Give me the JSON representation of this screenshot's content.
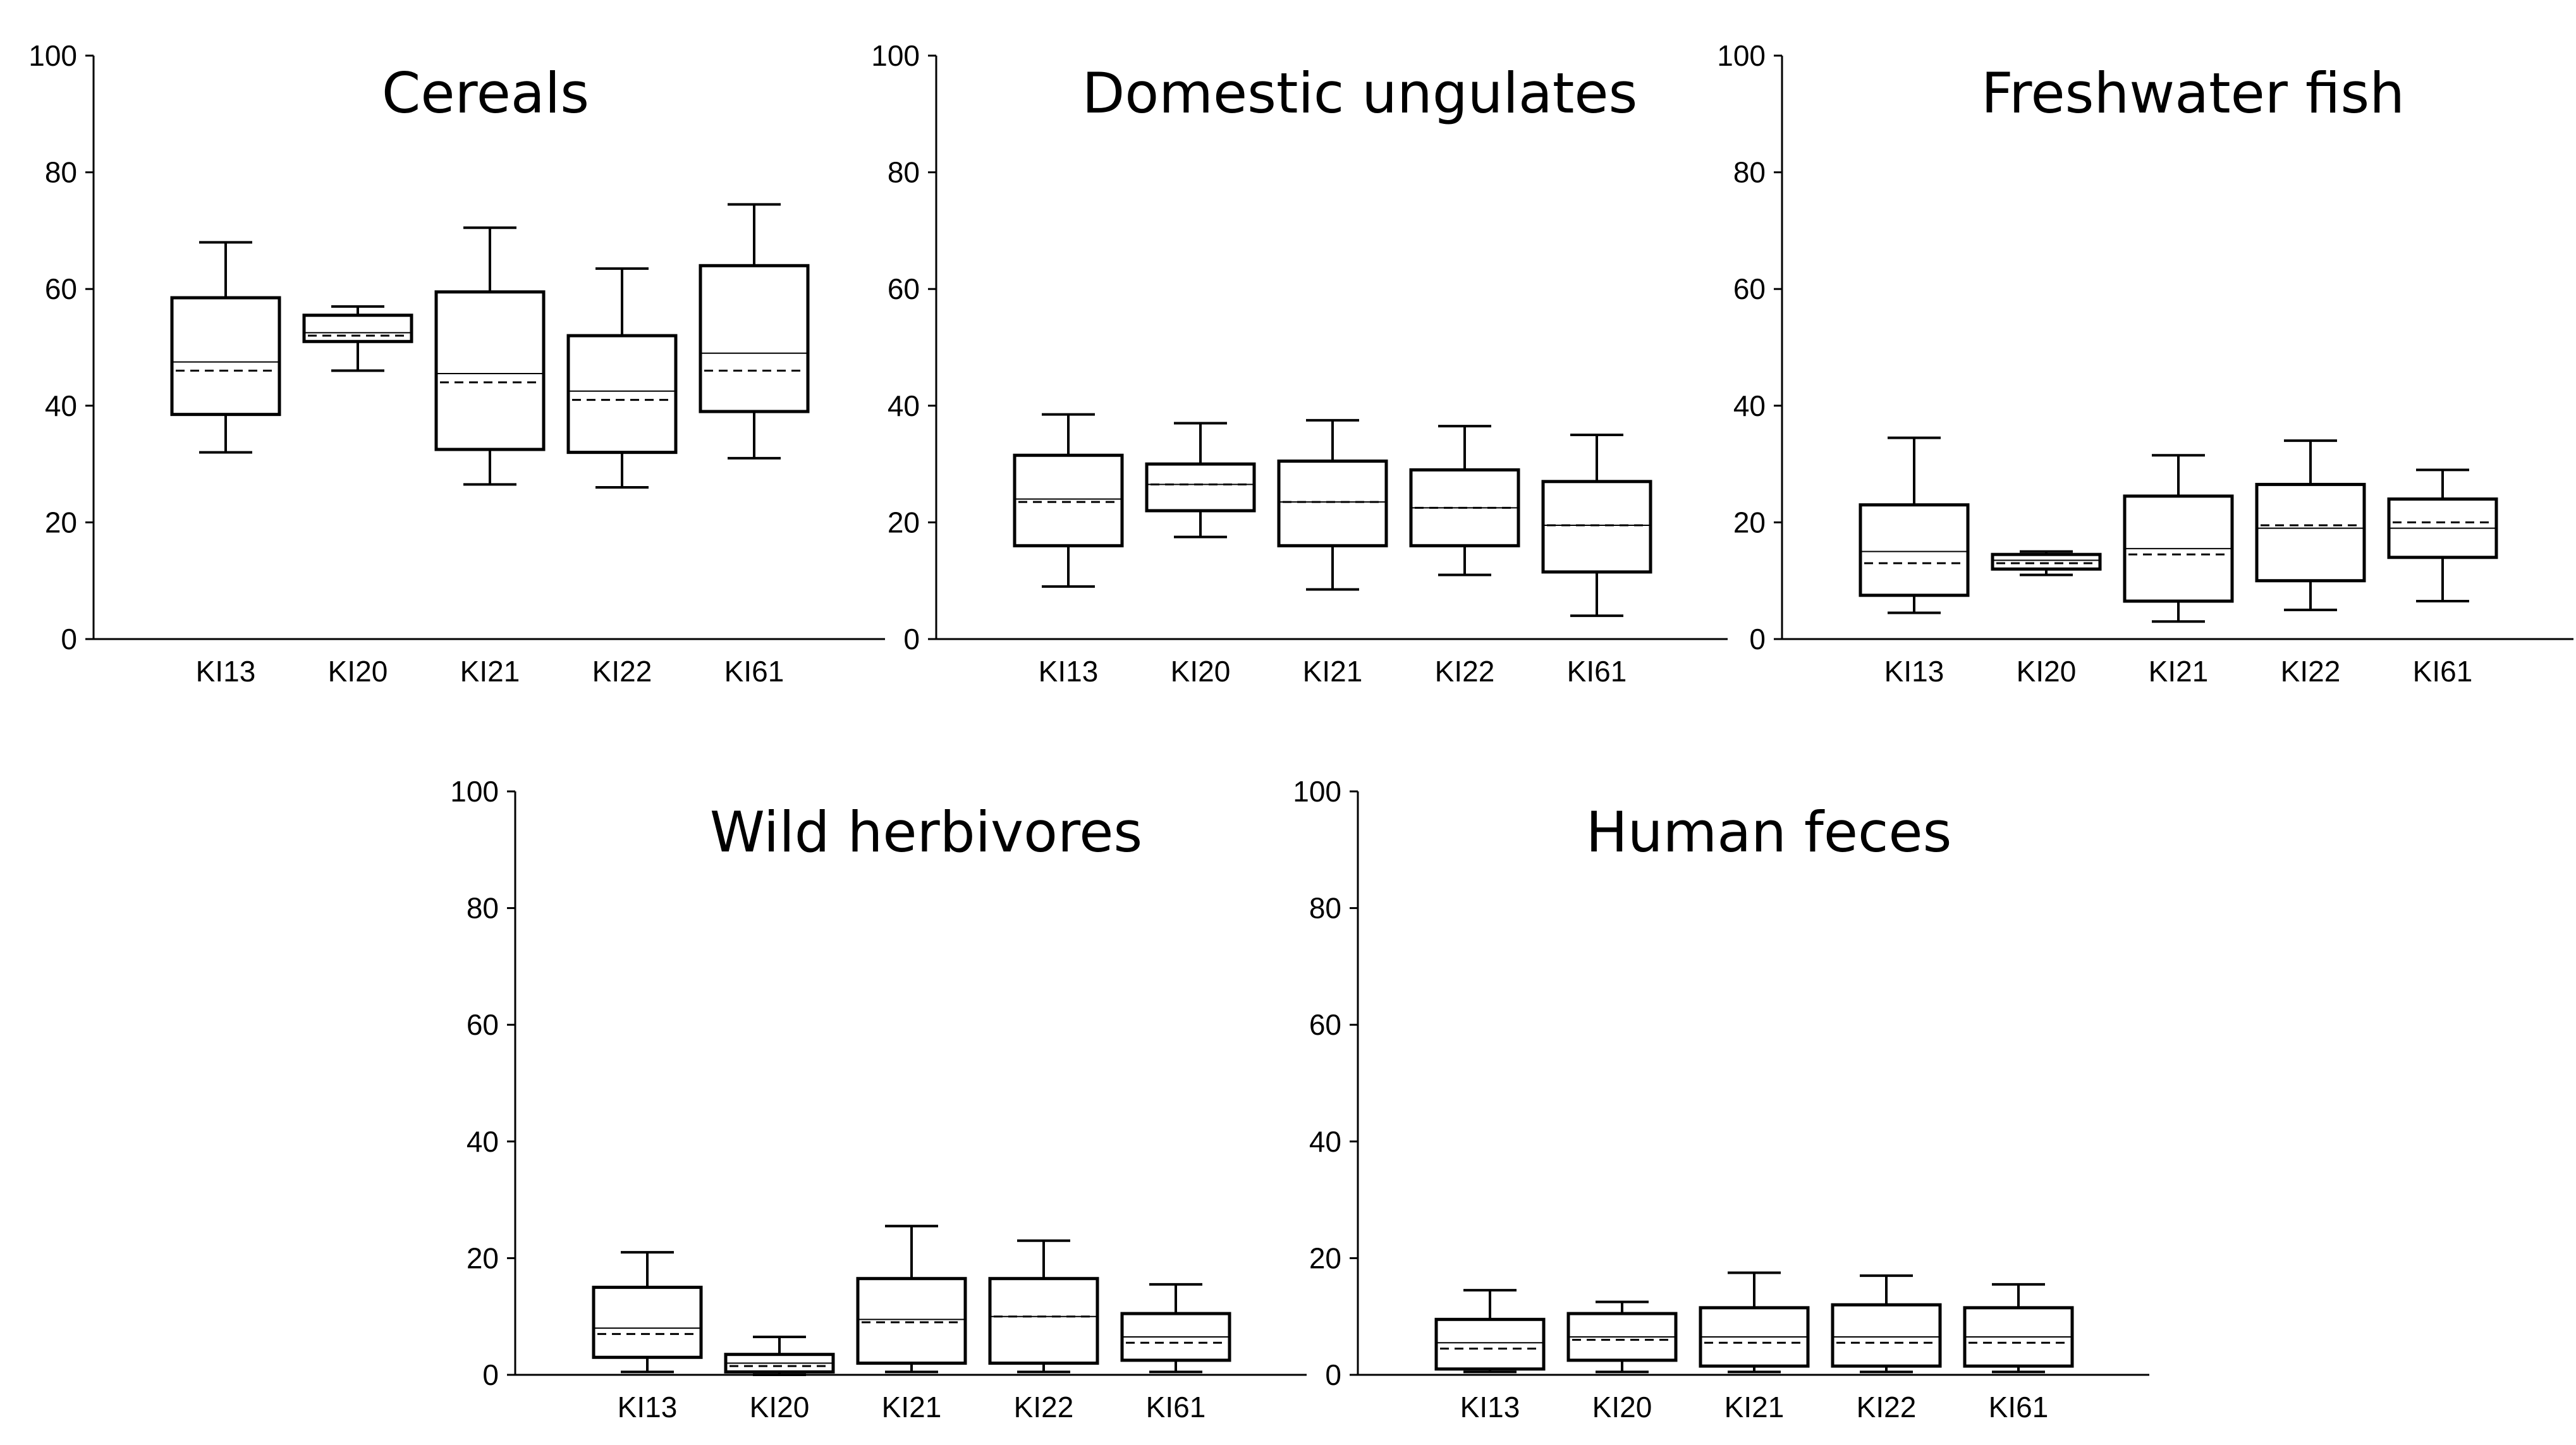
{
  "figure": {
    "colors": {
      "ink": "#000000",
      "background": "#ffffff",
      "box_fill": "#ffffff"
    }
  },
  "chart_data": [
    {
      "type": "box",
      "title": "Cereals",
      "ylim": [
        0,
        100
      ],
      "yticks": [
        0,
        20,
        40,
        60,
        80,
        100
      ],
      "categories": [
        "KI13",
        "KI20",
        "KI21",
        "KI22",
        "KI61"
      ],
      "boxes": [
        {
          "min": 32,
          "q1": 38.5,
          "median": 47.5,
          "mean": 46,
          "q3": 58.5,
          "max": 68
        },
        {
          "min": 46,
          "q1": 51,
          "median": 52.5,
          "mean": 52,
          "q3": 55.5,
          "max": 57
        },
        {
          "min": 26.5,
          "q1": 32.5,
          "median": 45.5,
          "mean": 44,
          "q3": 59.5,
          "max": 70.5
        },
        {
          "min": 26,
          "q1": 32,
          "median": 42.5,
          "mean": 41,
          "q3": 52,
          "max": 63.5
        },
        {
          "min": 31,
          "q1": 39,
          "median": 49,
          "mean": 46,
          "q3": 64,
          "max": 74.5
        }
      ]
    },
    {
      "type": "box",
      "title": "Domestic ungulates",
      "ylim": [
        0,
        100
      ],
      "yticks": [
        0,
        20,
        40,
        60,
        80,
        100
      ],
      "categories": [
        "KI13",
        "KI20",
        "KI21",
        "KI22",
        "KI61"
      ],
      "boxes": [
        {
          "min": 9,
          "q1": 16,
          "median": 24,
          "mean": 23.5,
          "q3": 31.5,
          "max": 38.5
        },
        {
          "min": 17.5,
          "q1": 22,
          "median": 26.5,
          "mean": 26.5,
          "q3": 30,
          "max": 37
        },
        {
          "min": 8.5,
          "q1": 16,
          "median": 23.5,
          "mean": 23.5,
          "q3": 30.5,
          "max": 37.5
        },
        {
          "min": 11,
          "q1": 16,
          "median": 22.5,
          "mean": 22.5,
          "q3": 29,
          "max": 36.5
        },
        {
          "min": 4,
          "q1": 11.5,
          "median": 19.5,
          "mean": 19.5,
          "q3": 27,
          "max": 35
        }
      ]
    },
    {
      "type": "box",
      "title": "Freshwater fish",
      "ylim": [
        0,
        100
      ],
      "yticks": [
        0,
        20,
        40,
        60,
        80,
        100
      ],
      "categories": [
        "KI13",
        "KI20",
        "KI21",
        "KI22",
        "KI61"
      ],
      "boxes": [
        {
          "min": 4.5,
          "q1": 7.5,
          "median": 15,
          "mean": 13,
          "q3": 23,
          "max": 34.5
        },
        {
          "min": 11,
          "q1": 12,
          "median": 13.5,
          "mean": 13,
          "q3": 14.5,
          "max": 15
        },
        {
          "min": 3,
          "q1": 6.5,
          "median": 15.5,
          "mean": 14.5,
          "q3": 24.5,
          "max": 31.5
        },
        {
          "min": 5,
          "q1": 10,
          "median": 19,
          "mean": 19.5,
          "q3": 26.5,
          "max": 34
        },
        {
          "min": 6.5,
          "q1": 14,
          "median": 19,
          "mean": 20,
          "q3": 24,
          "max": 29
        }
      ]
    },
    {
      "type": "box",
      "title": "Wild herbivores",
      "ylim": [
        0,
        100
      ],
      "yticks": [
        0,
        20,
        40,
        60,
        80,
        100
      ],
      "categories": [
        "KI13",
        "KI20",
        "KI21",
        "KI22",
        "KI61"
      ],
      "boxes": [
        {
          "min": 0.5,
          "q1": 3,
          "median": 8,
          "mean": 7,
          "q3": 15,
          "max": 21
        },
        {
          "min": 0,
          "q1": 0.5,
          "median": 2,
          "mean": 1.5,
          "q3": 3.5,
          "max": 6.5
        },
        {
          "min": 0.5,
          "q1": 2,
          "median": 9.5,
          "mean": 9,
          "q3": 16.5,
          "max": 25.5
        },
        {
          "min": 0.5,
          "q1": 2,
          "median": 10,
          "mean": 10,
          "q3": 16.5,
          "max": 23
        },
        {
          "min": 0.5,
          "q1": 2.5,
          "median": 6.5,
          "mean": 5.5,
          "q3": 10.5,
          "max": 15.5
        }
      ]
    },
    {
      "type": "box",
      "title": "Human feces",
      "ylim": [
        0,
        100
      ],
      "yticks": [
        0,
        20,
        40,
        60,
        80,
        100
      ],
      "categories": [
        "KI13",
        "KI20",
        "KI21",
        "KI22",
        "KI61"
      ],
      "boxes": [
        {
          "min": 0.5,
          "q1": 1,
          "median": 5.5,
          "mean": 4.5,
          "q3": 9.5,
          "max": 14.5
        },
        {
          "min": 0.5,
          "q1": 2.5,
          "median": 6.5,
          "mean": 6,
          "q3": 10.5,
          "max": 12.5
        },
        {
          "min": 0.5,
          "q1": 1.5,
          "median": 6.5,
          "mean": 5.5,
          "q3": 11.5,
          "max": 17.5
        },
        {
          "min": 0.5,
          "q1": 1.5,
          "median": 6.5,
          "mean": 5.5,
          "q3": 12,
          "max": 17
        },
        {
          "min": 0.5,
          "q1": 1.5,
          "median": 6.5,
          "mean": 5.5,
          "q3": 11.5,
          "max": 15.5
        }
      ]
    }
  ]
}
